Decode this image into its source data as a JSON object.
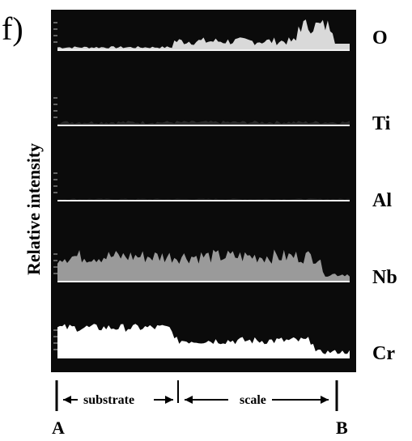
{
  "figure": {
    "panel_label": "f)",
    "ylabel": "Relative intensity",
    "start_label": "A",
    "end_label": "B",
    "region_labels": [
      "substrate",
      "scale"
    ]
  },
  "chart_data": {
    "type": "area",
    "ylabel": "Relative intensity",
    "x_range": [
      0,
      100
    ],
    "series": [
      {
        "name": "O",
        "level": "low in substrate, rising in scale with peak near B"
      },
      {
        "name": "Ti",
        "level": "near background throughout"
      },
      {
        "name": "Al",
        "level": "near background throughout"
      },
      {
        "name": "Nb",
        "level": "moderate, slightly lower near B"
      },
      {
        "name": "Cr",
        "level": "high in substrate, lower in scale, dropping near B"
      }
    ],
    "grid": false
  }
}
